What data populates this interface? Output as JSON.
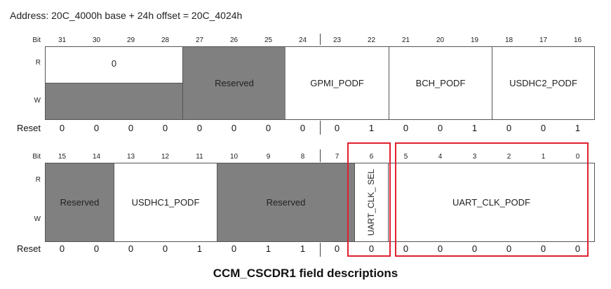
{
  "address": "Address: 20C_4000h base + 24h offset = 20C_4024h",
  "labels": {
    "bit": "Bit",
    "r": "R",
    "w": "W",
    "reset": "Reset"
  },
  "upper": {
    "bits": [
      "31",
      "30",
      "29",
      "28",
      "27",
      "26",
      "25",
      "24",
      "23",
      "22",
      "21",
      "20",
      "19",
      "18",
      "17",
      "16"
    ],
    "reset": [
      "0",
      "0",
      "0",
      "0",
      "0",
      "0",
      "0",
      "0",
      "0",
      "1",
      "0",
      "0",
      "1",
      "0",
      "0",
      "1"
    ],
    "fields": [
      {
        "name": "0",
        "bits": "31-28",
        "read_only_value": "0"
      },
      {
        "name": "Reserved",
        "bits": "27-25"
      },
      {
        "name": "GPMI_PODF",
        "bits": "24-22"
      },
      {
        "name": "BCH_PODF",
        "bits": "21-19"
      },
      {
        "name": "USDHC2_PODF",
        "bits": "18-16"
      }
    ]
  },
  "lower": {
    "bits": [
      "15",
      "14",
      "13",
      "12",
      "11",
      "10",
      "9",
      "8",
      "7",
      "6",
      "5",
      "4",
      "3",
      "2",
      "1",
      "0"
    ],
    "reset": [
      "0",
      "0",
      "0",
      "0",
      "1",
      "0",
      "1",
      "1",
      "0",
      "0",
      "0",
      "0",
      "0",
      "0",
      "0",
      "0"
    ],
    "fields": [
      {
        "name": "Reserved",
        "bits": "15-14"
      },
      {
        "name": "USDHC1_PODF",
        "bits": "13-11"
      },
      {
        "name": "Reserved",
        "bits": "10-7"
      },
      {
        "name": "UART_CLK_SEL",
        "display": "UART_CLK_ SEL",
        "bits": "6"
      },
      {
        "name": "UART_CLK_PODF",
        "bits": "5-0"
      }
    ]
  },
  "highlight_color": "#e02030",
  "caption": "CCM_CSCDR1 field descriptions"
}
